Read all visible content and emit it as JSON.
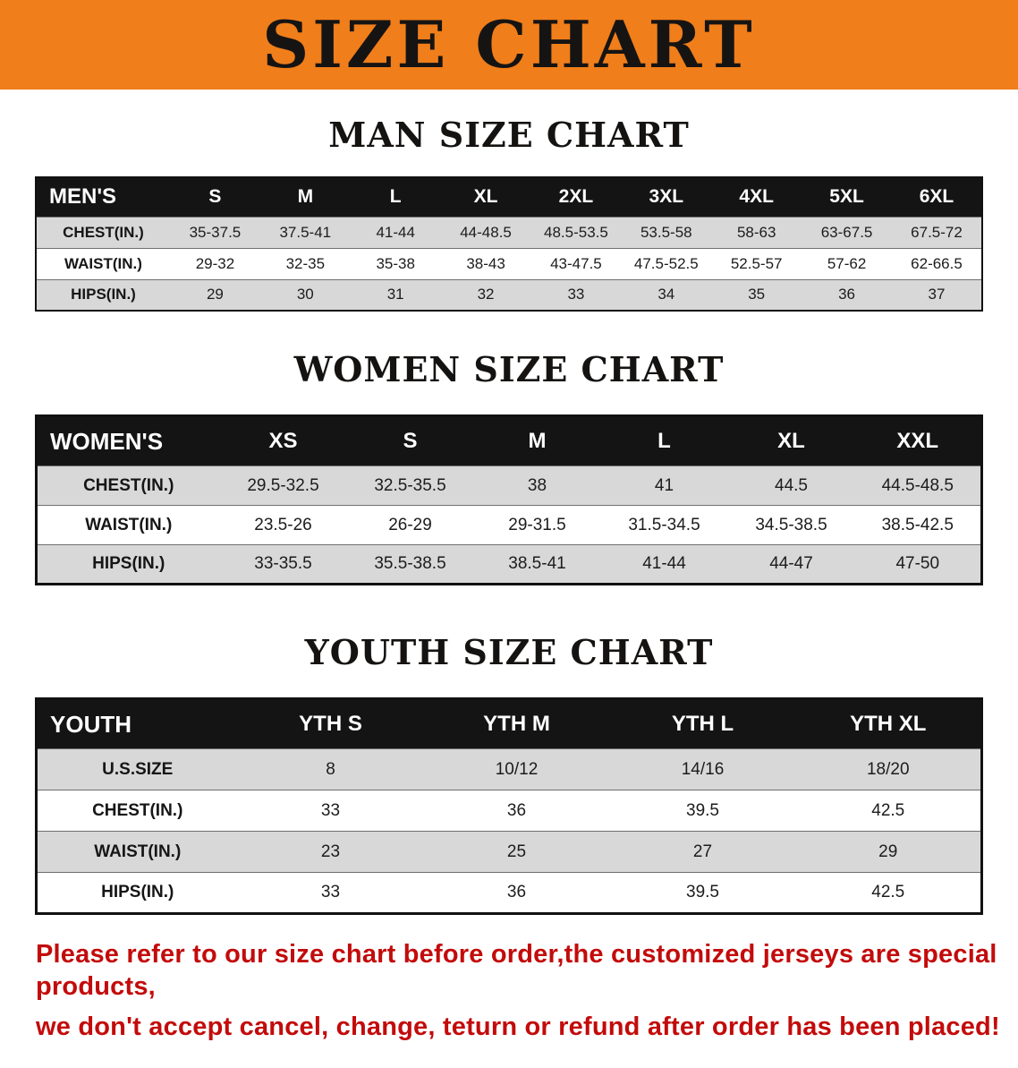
{
  "banner": {
    "title": "SIZE CHART"
  },
  "sections": [
    {
      "heading": "MAN SIZE CHART",
      "table": {
        "header": [
          "MEN'S",
          "S",
          "M",
          "L",
          "XL",
          "2XL",
          "3XL",
          "4XL",
          "5XL",
          "6XL"
        ],
        "rows": [
          [
            "CHEST(IN.)",
            "35-37.5",
            "37.5-41",
            "41-44",
            "44-48.5",
            "48.5-53.5",
            "53.5-58",
            "58-63",
            "63-67.5",
            "67.5-72"
          ],
          [
            "WAIST(IN.)",
            "29-32",
            "32-35",
            "35-38",
            "38-43",
            "43-47.5",
            "47.5-52.5",
            "52.5-57",
            "57-62",
            "62-66.5"
          ],
          [
            "HIPS(IN.)",
            "29",
            "30",
            "31",
            "32",
            "33",
            "34",
            "35",
            "36",
            "37"
          ]
        ]
      }
    },
    {
      "heading": "WOMEN SIZE CHART",
      "table": {
        "header": [
          "WOMEN'S",
          "XS",
          "S",
          "M",
          "L",
          "XL",
          "XXL"
        ],
        "rows": [
          [
            "CHEST(IN.)",
            "29.5-32.5",
            "32.5-35.5",
            "38",
            "41",
            "44.5",
            "44.5-48.5"
          ],
          [
            "WAIST(IN.)",
            "23.5-26",
            "26-29",
            "29-31.5",
            "31.5-34.5",
            "34.5-38.5",
            "38.5-42.5"
          ],
          [
            "HIPS(IN.)",
            "33-35.5",
            "35.5-38.5",
            "38.5-41",
            "41-44",
            "44-47",
            "47-50"
          ]
        ]
      }
    },
    {
      "heading": "YOUTH SIZE CHART",
      "table": {
        "header": [
          "YOUTH",
          "YTH S",
          "YTH M",
          "YTH L",
          "YTH XL"
        ],
        "rows": [
          [
            "U.S.SIZE",
            "8",
            "10/12",
            "14/16",
            "18/20"
          ],
          [
            "CHEST(IN.)",
            "33",
            "36",
            "39.5",
            "42.5"
          ],
          [
            "WAIST(IN.)",
            "23",
            "25",
            "27",
            "29"
          ],
          [
            "HIPS(IN.)",
            "33",
            "36",
            "39.5",
            "42.5"
          ]
        ]
      }
    }
  ],
  "disclaimer": {
    "line1": "Please refer to our size chart before order,the customized jerseys are special products,",
    "line2": "we don't accept cancel, change, teturn or refund after order has been placed!"
  },
  "colors": {
    "banner_orange": "#F07E1B",
    "table_header_black": "#141414",
    "row_gray": "#D8D8D8",
    "row_white": "#FFFFFF",
    "disclaimer_red": "#C30B0B"
  }
}
